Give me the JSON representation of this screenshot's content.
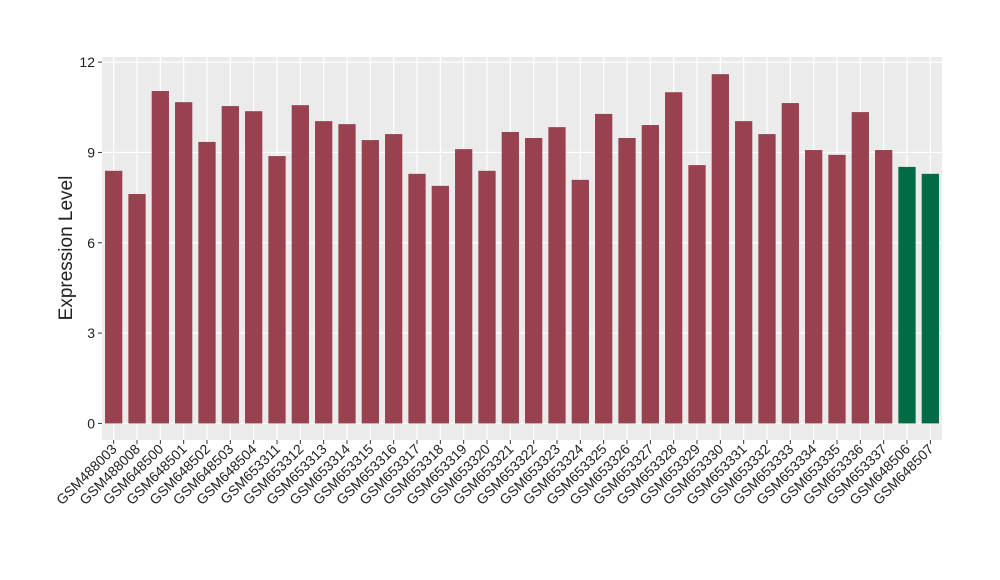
{
  "chart_data": {
    "type": "bar",
    "y_label": "Expression Level",
    "categories": [
      "GSM488003",
      "GSM488008",
      "GSM648500",
      "GSM648501",
      "GSM648502",
      "GSM648503",
      "GSM648504",
      "GSM653311",
      "GSM653312",
      "GSM653313",
      "GSM653314",
      "GSM653315",
      "GSM653316",
      "GSM653317",
      "GSM653318",
      "GSM653319",
      "GSM653320",
      "GSM653321",
      "GSM653322",
      "GSM653323",
      "GSM653324",
      "GSM653325",
      "GSM653326",
      "GSM653327",
      "GSM653328",
      "GSM653329",
      "GSM653330",
      "GSM653331",
      "GSM653332",
      "GSM653333",
      "GSM653334",
      "GSM653335",
      "GSM653336",
      "GSM653337",
      "GSM648506",
      "GSM648507"
    ],
    "values": [
      8.39,
      7.62,
      11.04,
      10.67,
      9.35,
      10.54,
      10.37,
      8.88,
      10.57,
      10.04,
      9.94,
      9.41,
      9.61,
      8.29,
      7.89,
      9.11,
      8.39,
      9.68,
      9.48,
      9.84,
      8.09,
      10.28,
      9.48,
      9.91,
      11.0,
      8.58,
      11.6,
      10.04,
      9.61,
      10.64,
      9.08,
      8.92,
      10.34,
      9.08,
      8.52,
      8.29
    ],
    "colors": [
      "#98414f",
      "#98414f",
      "#98414f",
      "#98414f",
      "#98414f",
      "#98414f",
      "#98414f",
      "#98414f",
      "#98414f",
      "#98414f",
      "#98414f",
      "#98414f",
      "#98414f",
      "#98414f",
      "#98414f",
      "#98414f",
      "#98414f",
      "#98414f",
      "#98414f",
      "#98414f",
      "#98414f",
      "#98414f",
      "#98414f",
      "#98414f",
      "#98414f",
      "#98414f",
      "#98414f",
      "#98414f",
      "#98414f",
      "#98414f",
      "#98414f",
      "#98414f",
      "#98414f",
      "#98414f",
      "#006b45",
      "#006b45"
    ],
    "ylim": [
      -0.55,
      12.17
    ],
    "yticks": [
      0,
      3,
      6,
      9,
      12
    ],
    "grid": true
  }
}
